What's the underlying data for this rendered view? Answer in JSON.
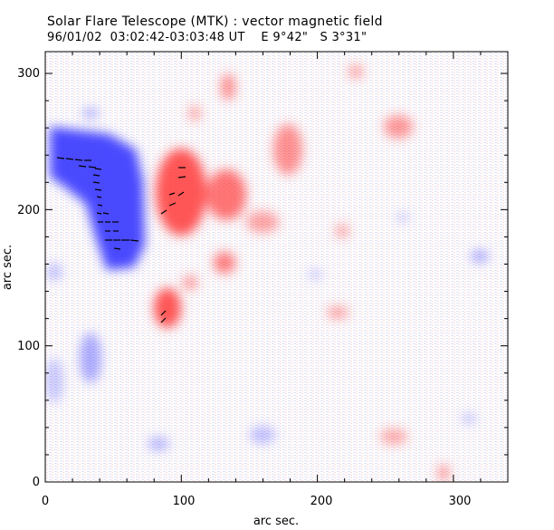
{
  "header": {
    "title": "Solar Flare Telescope (MTK) : vector magnetic field",
    "subtitle": "96/01/02  03:02:42-03:03:48 UT    E 9°42\"   S 3°31\""
  },
  "axes": {
    "xlabel": "arc sec.",
    "ylabel": "arc sec.",
    "x_ticks": [
      "0",
      "100",
      "200",
      "300"
    ],
    "y_ticks": [
      "0",
      "100",
      "200",
      "300"
    ],
    "xlim": [
      0,
      340
    ],
    "ylim": [
      0,
      316
    ]
  },
  "colors": {
    "negative_polarity": "#3a3aff",
    "positive_polarity": "#ff3a3a",
    "background": "#ffffff",
    "vectors": "#000000"
  }
}
